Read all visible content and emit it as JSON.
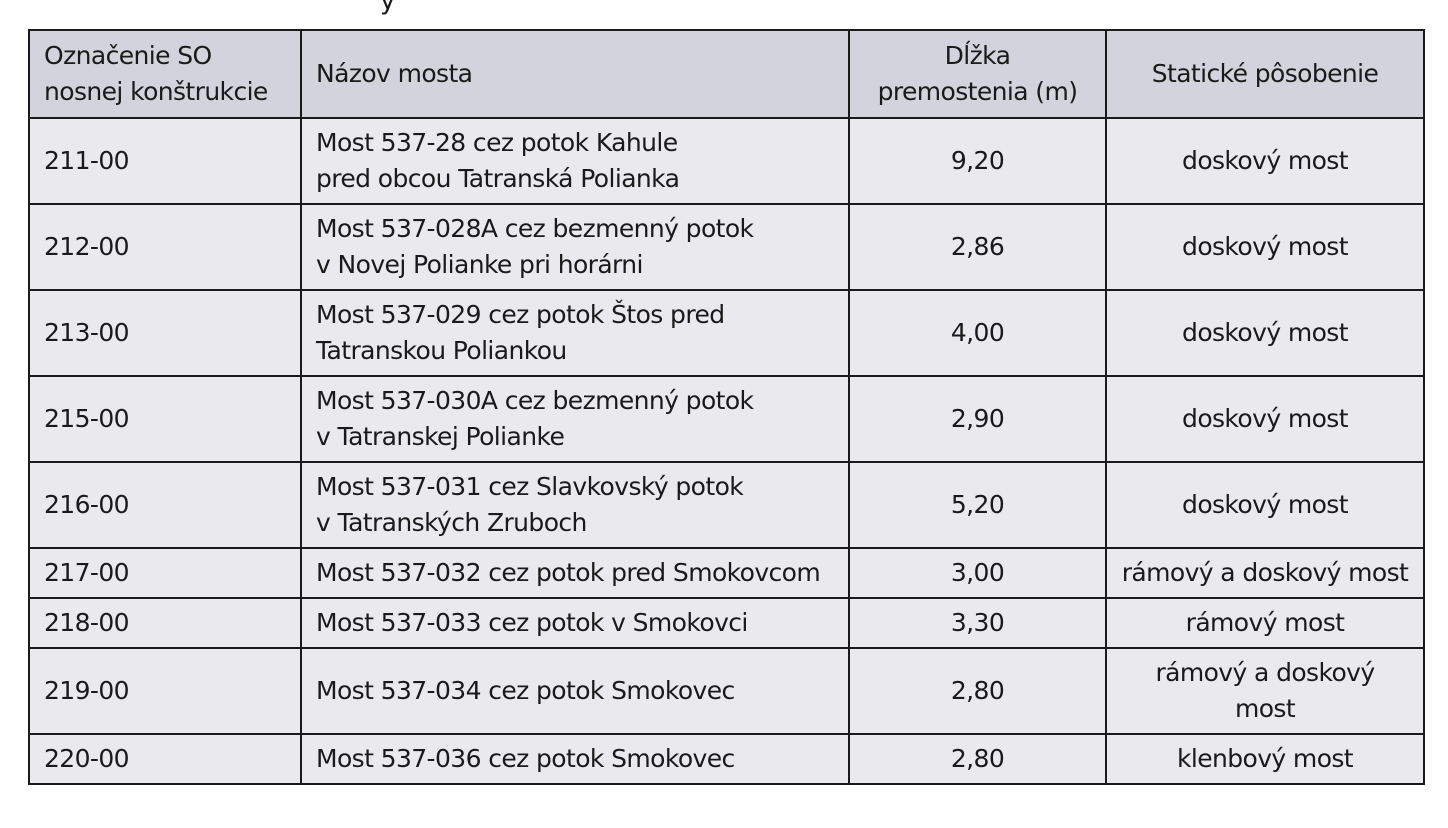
{
  "top_fragment": "y",
  "table": {
    "headers": [
      [
        "Označenie SO",
        "nosnej konštrukcie"
      ],
      [
        "Názov mosta"
      ],
      [
        "Dĺžka",
        "premostenia (m)"
      ],
      [
        "Statické pôsobenie"
      ]
    ],
    "rows": [
      {
        "code": "211-00",
        "name": [
          "Most 537-28 cez potok Kahule",
          "pred obcou Tatranská Polianka"
        ],
        "length": "9,20",
        "static": [
          "doskový most"
        ]
      },
      {
        "code": "212-00",
        "name": [
          "Most 537-028A cez bezmenný potok",
          "v Novej Polianke pri horárni"
        ],
        "length": "2,86",
        "static": [
          "doskový most"
        ]
      },
      {
        "code": "213-00",
        "name": [
          "Most 537-029 cez potok Štos pred",
          "Tatranskou Poliankou"
        ],
        "length": "4,00",
        "static": [
          "doskový most"
        ]
      },
      {
        "code": "215-00",
        "name": [
          "Most 537-030A cez bezmenný potok",
          "v Tatranskej Polianke"
        ],
        "length": "2,90",
        "static": [
          "doskový most"
        ]
      },
      {
        "code": "216-00",
        "name": [
          "Most 537-031 cez Slavkovský potok",
          "v Tatranských Zruboch"
        ],
        "length": "5,20",
        "static": [
          "doskový most"
        ]
      },
      {
        "code": "217-00",
        "name": [
          "Most 537-032 cez potok pred Smokovcom"
        ],
        "length": "3,00",
        "static": [
          "rámový a doskový most"
        ]
      },
      {
        "code": "218-00",
        "name": [
          "Most 537-033 cez potok v Smokovci"
        ],
        "length": "3,30",
        "static": [
          "rámový most"
        ]
      },
      {
        "code": "219-00",
        "name": [
          "Most 537-034 cez potok Smokovec"
        ],
        "length": "2,80",
        "static": [
          "rámový a doskový",
          "most"
        ]
      },
      {
        "code": "220-00",
        "name": [
          "Most 537-036 cez potok Smokovec"
        ],
        "length": "2,80",
        "static": [
          "klenbový most"
        ]
      }
    ]
  },
  "colors": {
    "header_background": "#d2d3dc",
    "body_background": "#e9e9ee",
    "border": "#1a1a1a"
  }
}
